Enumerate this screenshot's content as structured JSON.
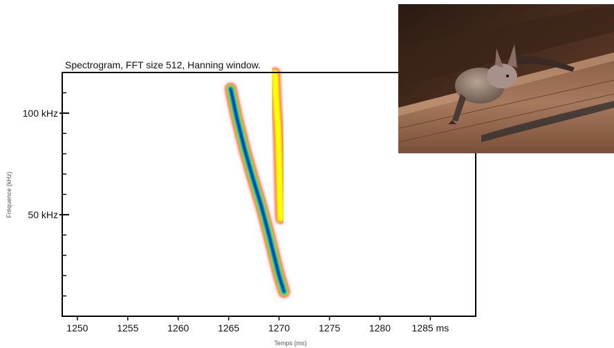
{
  "chart_data": {
    "type": "heatmap",
    "title": "Spectrogram, FFT size 512, Hanning window.",
    "xlabel": "Temps (ms)",
    "ylabel": "Fréquence (kHz)",
    "x_ticks": [
      {
        "value": 1250,
        "label": "1250"
      },
      {
        "value": 1255,
        "label": "1255"
      },
      {
        "value": 1260,
        "label": "1260"
      },
      {
        "value": 1265,
        "label": "1265"
      },
      {
        "value": 1270,
        "label": "1270"
      },
      {
        "value": 1275,
        "label": "1275"
      },
      {
        "value": 1280,
        "label": "1280"
      },
      {
        "value": 1285,
        "label": "1285 ms"
      }
    ],
    "y_ticks": [
      {
        "value": 50,
        "label": "50 kHz"
      },
      {
        "value": 100,
        "label": "100 kHz"
      }
    ],
    "x_range": [
      1248.5,
      1289.5
    ],
    "y_range": [
      0,
      120
    ],
    "y_minor_step": 10,
    "colormap": [
      "#ff2020",
      "#ffff00",
      "#00e040",
      "#00e0e0",
      "#1040ff",
      "#00008c"
    ],
    "series": [
      {
        "path": [
          [
            1265.2,
            112
          ],
          [
            1265.8,
            98
          ],
          [
            1266.6,
            82
          ],
          [
            1267.4,
            68
          ],
          [
            1268.2,
            55
          ],
          [
            1268.9,
            42
          ],
          [
            1269.5,
            30
          ],
          [
            1270.0,
            20
          ],
          [
            1270.5,
            12
          ]
        ],
        "peak_intensity": 1.0
      },
      {
        "path": [
          [
            1269.6,
            120
          ],
          [
            1269.7,
            108
          ],
          [
            1269.85,
            96
          ],
          [
            1269.95,
            86
          ],
          [
            1270.0,
            76
          ],
          [
            1270.05,
            66
          ],
          [
            1270.1,
            56
          ],
          [
            1270.15,
            48
          ]
        ],
        "peak_intensity": 0.4
      }
    ]
  },
  "photo": {
    "subject": "bat"
  }
}
